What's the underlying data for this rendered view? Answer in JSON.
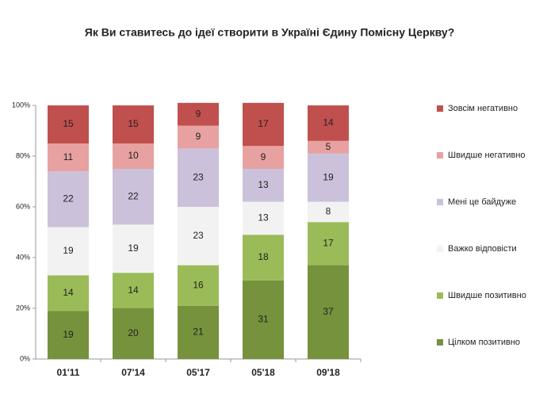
{
  "chart_data": {
    "type": "stacked_bar",
    "title": "Як Ви ставитесь до ідеї створити в Україні Єдину Помісну Церкву?",
    "categories": [
      "01'11",
      "07'14",
      "05'17",
      "05'18",
      "09'18"
    ],
    "series": [
      {
        "name": "Цілком позитивно",
        "color": "#76923c",
        "values": [
          19,
          20,
          21,
          31,
          37
        ]
      },
      {
        "name": "Швидше позитивно",
        "color": "#9bbb59",
        "values": [
          14,
          14,
          16,
          18,
          17
        ]
      },
      {
        "name": "Важко відповісти",
        "color": "#f2f2f2",
        "values": [
          19,
          19,
          23,
          13,
          8
        ]
      },
      {
        "name": "Мені це байдуже",
        "color": "#ccc1da",
        "values": [
          22,
          22,
          23,
          13,
          19
        ]
      },
      {
        "name": "Швидше негативно",
        "color": "#e6a1a0",
        "values": [
          11,
          10,
          9,
          9,
          5
        ]
      },
      {
        "name": "Зовсім негативно",
        "color": "#c0504d",
        "values": [
          15,
          15,
          9,
          17,
          14
        ]
      }
    ],
    "ylim": [
      0,
      100
    ],
    "yticks": [
      {
        "value": 0,
        "label": "0%"
      },
      {
        "value": 20,
        "label": "20%"
      },
      {
        "value": 40,
        "label": "40%"
      },
      {
        "value": 60,
        "label": "60%"
      },
      {
        "value": 80,
        "label": "80%"
      },
      {
        "value": 100,
        "label": "100%"
      }
    ],
    "legend": "right"
  }
}
